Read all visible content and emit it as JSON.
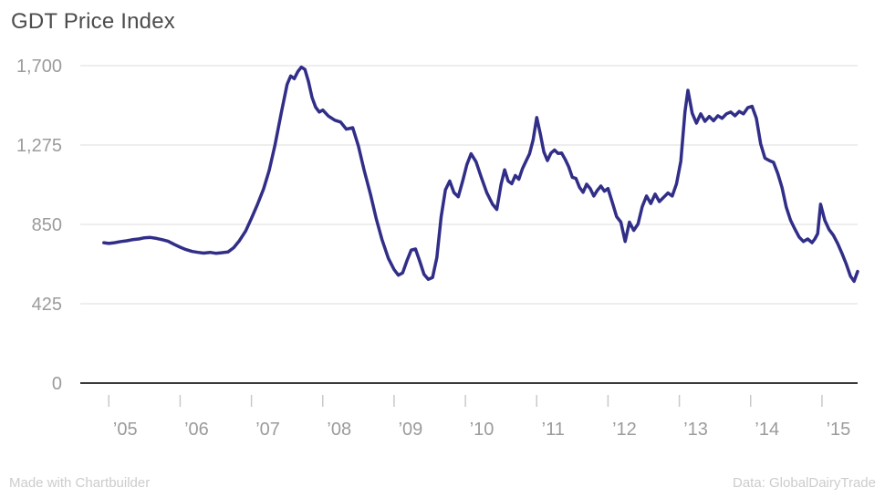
{
  "title": "GDT Price Index",
  "credits": {
    "left": "Made with Chartbuilder",
    "right": "Data: GlobalDairyTrade"
  },
  "colors": {
    "line": "#312e88",
    "grid": "#dcdcdc",
    "axis": "#3a3a3a",
    "tick": "#c9c9c9",
    "tick_label": "#9b9b9b",
    "title": "#4c4c4c",
    "credit": "#cccccc"
  },
  "chart_data": {
    "type": "line",
    "title": "GDT Price Index",
    "xlabel": "",
    "ylabel": "",
    "xlim": [
      2004.6,
      2015.5
    ],
    "ylim": [
      0,
      1700
    ],
    "grid": "horizontal",
    "legend": "none",
    "y_ticks": [
      0,
      425,
      850,
      1275,
      1700
    ],
    "y_tick_labels": [
      "0",
      "425",
      "850",
      "1,275",
      "1,700"
    ],
    "x_ticks": [
      2005,
      2006,
      2007,
      2008,
      2009,
      2010,
      2011,
      2012,
      2013,
      2014,
      2015
    ],
    "x_tick_labels": [
      "’05",
      "’06",
      "’07",
      "’08",
      "’09",
      "’10",
      "’11",
      "’12",
      "’13",
      "’14",
      "’15"
    ],
    "series": [
      {
        "name": "GDT Price Index",
        "color": "#312e88",
        "points": [
          [
            2004.93,
            752
          ],
          [
            2005.0,
            748
          ],
          [
            2005.08,
            752
          ],
          [
            2005.17,
            758
          ],
          [
            2005.25,
            762
          ],
          [
            2005.33,
            768
          ],
          [
            2005.42,
            772
          ],
          [
            2005.5,
            778
          ],
          [
            2005.58,
            780
          ],
          [
            2005.67,
            775
          ],
          [
            2005.75,
            768
          ],
          [
            2005.83,
            760
          ],
          [
            2005.92,
            742
          ],
          [
            2006.0,
            728
          ],
          [
            2006.08,
            715
          ],
          [
            2006.17,
            705
          ],
          [
            2006.25,
            700
          ],
          [
            2006.33,
            696
          ],
          [
            2006.42,
            700
          ],
          [
            2006.5,
            695
          ],
          [
            2006.58,
            698
          ],
          [
            2006.67,
            702
          ],
          [
            2006.75,
            725
          ],
          [
            2006.83,
            762
          ],
          [
            2006.92,
            815
          ],
          [
            2007.0,
            882
          ],
          [
            2007.08,
            952
          ],
          [
            2007.17,
            1040
          ],
          [
            2007.25,
            1140
          ],
          [
            2007.33,
            1275
          ],
          [
            2007.42,
            1450
          ],
          [
            2007.5,
            1600
          ],
          [
            2007.55,
            1645
          ],
          [
            2007.6,
            1630
          ],
          [
            2007.65,
            1668
          ],
          [
            2007.7,
            1692
          ],
          [
            2007.75,
            1680
          ],
          [
            2007.8,
            1615
          ],
          [
            2007.85,
            1530
          ],
          [
            2007.9,
            1478
          ],
          [
            2007.95,
            1452
          ],
          [
            2008.0,
            1462
          ],
          [
            2008.08,
            1430
          ],
          [
            2008.17,
            1408
          ],
          [
            2008.25,
            1398
          ],
          [
            2008.33,
            1360
          ],
          [
            2008.42,
            1368
          ],
          [
            2008.5,
            1270
          ],
          [
            2008.58,
            1140
          ],
          [
            2008.67,
            1010
          ],
          [
            2008.75,
            880
          ],
          [
            2008.83,
            770
          ],
          [
            2008.92,
            668
          ],
          [
            2009.0,
            608
          ],
          [
            2009.06,
            578
          ],
          [
            2009.12,
            590
          ],
          [
            2009.18,
            655
          ],
          [
            2009.24,
            712
          ],
          [
            2009.3,
            718
          ],
          [
            2009.36,
            652
          ],
          [
            2009.42,
            582
          ],
          [
            2009.48,
            556
          ],
          [
            2009.54,
            565
          ],
          [
            2009.6,
            672
          ],
          [
            2009.66,
            890
          ],
          [
            2009.72,
            1035
          ],
          [
            2009.78,
            1082
          ],
          [
            2009.84,
            1020
          ],
          [
            2009.9,
            998
          ],
          [
            2009.96,
            1080
          ],
          [
            2010.02,
            1170
          ],
          [
            2010.08,
            1228
          ],
          [
            2010.15,
            1185
          ],
          [
            2010.22,
            1105
          ],
          [
            2010.3,
            1020
          ],
          [
            2010.38,
            958
          ],
          [
            2010.44,
            930
          ],
          [
            2010.5,
            1065
          ],
          [
            2010.55,
            1142
          ],
          [
            2010.6,
            1082
          ],
          [
            2010.65,
            1068
          ],
          [
            2010.7,
            1112
          ],
          [
            2010.75,
            1092
          ],
          [
            2010.8,
            1148
          ],
          [
            2010.85,
            1188
          ],
          [
            2010.9,
            1228
          ],
          [
            2010.95,
            1302
          ],
          [
            2011.0,
            1422
          ],
          [
            2011.05,
            1335
          ],
          [
            2011.1,
            1238
          ],
          [
            2011.15,
            1192
          ],
          [
            2011.2,
            1232
          ],
          [
            2011.25,
            1248
          ],
          [
            2011.3,
            1230
          ],
          [
            2011.35,
            1232
          ],
          [
            2011.4,
            1198
          ],
          [
            2011.45,
            1158
          ],
          [
            2011.5,
            1102
          ],
          [
            2011.55,
            1096
          ],
          [
            2011.6,
            1048
          ],
          [
            2011.65,
            1022
          ],
          [
            2011.7,
            1065
          ],
          [
            2011.75,
            1042
          ],
          [
            2011.8,
            1002
          ],
          [
            2011.85,
            1032
          ],
          [
            2011.9,
            1055
          ],
          [
            2011.95,
            1028
          ],
          [
            2012.0,
            1042
          ],
          [
            2012.06,
            968
          ],
          [
            2012.12,
            892
          ],
          [
            2012.18,
            862
          ],
          [
            2012.24,
            758
          ],
          [
            2012.3,
            862
          ],
          [
            2012.36,
            818
          ],
          [
            2012.42,
            852
          ],
          [
            2012.48,
            945
          ],
          [
            2012.54,
            1002
          ],
          [
            2012.6,
            962
          ],
          [
            2012.66,
            1012
          ],
          [
            2012.72,
            972
          ],
          [
            2012.78,
            995
          ],
          [
            2012.84,
            1018
          ],
          [
            2012.9,
            1002
          ],
          [
            2012.96,
            1068
          ],
          [
            2013.02,
            1188
          ],
          [
            2013.08,
            1455
          ],
          [
            2013.12,
            1568
          ],
          [
            2013.18,
            1445
          ],
          [
            2013.24,
            1392
          ],
          [
            2013.3,
            1442
          ],
          [
            2013.36,
            1402
          ],
          [
            2013.42,
            1428
          ],
          [
            2013.48,
            1405
          ],
          [
            2013.54,
            1432
          ],
          [
            2013.6,
            1418
          ],
          [
            2013.66,
            1442
          ],
          [
            2013.72,
            1452
          ],
          [
            2013.78,
            1432
          ],
          [
            2013.84,
            1455
          ],
          [
            2013.9,
            1442
          ],
          [
            2013.96,
            1475
          ],
          [
            2014.02,
            1482
          ],
          [
            2014.08,
            1418
          ],
          [
            2014.14,
            1282
          ],
          [
            2014.2,
            1205
          ],
          [
            2014.26,
            1192
          ],
          [
            2014.32,
            1182
          ],
          [
            2014.38,
            1122
          ],
          [
            2014.44,
            1048
          ],
          [
            2014.5,
            942
          ],
          [
            2014.56,
            872
          ],
          [
            2014.62,
            825
          ],
          [
            2014.68,
            782
          ],
          [
            2014.74,
            758
          ],
          [
            2014.8,
            772
          ],
          [
            2014.86,
            752
          ],
          [
            2014.9,
            772
          ],
          [
            2014.94,
            800
          ],
          [
            2014.98,
            958
          ],
          [
            2015.04,
            872
          ],
          [
            2015.1,
            822
          ],
          [
            2015.16,
            792
          ],
          [
            2015.22,
            748
          ],
          [
            2015.28,
            695
          ],
          [
            2015.34,
            638
          ],
          [
            2015.4,
            572
          ],
          [
            2015.45,
            545
          ],
          [
            2015.5,
            598
          ]
        ]
      }
    ]
  }
}
